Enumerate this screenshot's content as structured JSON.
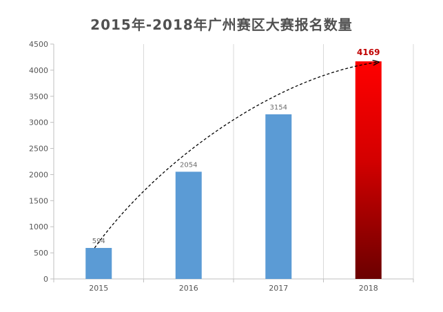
{
  "chart_data": {
    "type": "bar",
    "title": "2015年-2018年广州赛区大赛报名数量",
    "categories": [
      "2015",
      "2016",
      "2017",
      "2018"
    ],
    "values": [
      594,
      2054,
      3154,
      4169
    ],
    "data_labels": [
      "594",
      "2054",
      "3154",
      "4169"
    ],
    "y_ticks": [
      "0",
      "500",
      "1000",
      "1500",
      "2000",
      "2500",
      "3000",
      "3500",
      "4000",
      "4500"
    ],
    "ylim": [
      0,
      4500
    ],
    "grid": "vertical",
    "trend_arrow": true,
    "colors": {
      "bar": "#5b9bd5",
      "highlight_top": "#ff0000",
      "highlight_bottom": "#6b0000",
      "highlight_label": "#c00000",
      "title": "#505050"
    }
  }
}
